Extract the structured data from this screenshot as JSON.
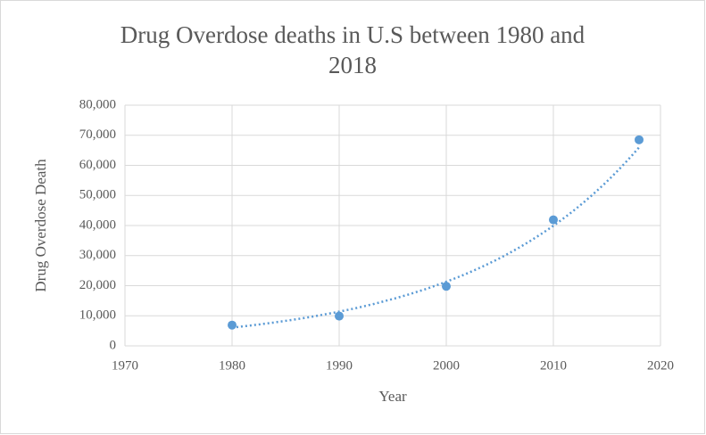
{
  "chart_data": {
    "type": "scatter",
    "title": "Drug Overdose deaths in U.S between 1980 and 2018",
    "x_label": "Year",
    "y_label": "Drug Overdose Death",
    "series": [
      {
        "x": [
          1980,
          1990,
          2000,
          2010,
          2018
        ],
        "values": [
          6900,
          9900,
          19800,
          41900,
          68500
        ],
        "color": "#5b9bd5"
      }
    ],
    "trendline": "exponential",
    "xlim": [
      1970,
      2020
    ],
    "xticks": [
      1970,
      1980,
      1990,
      2000,
      2010,
      2020
    ],
    "ylim": [
      0,
      80000
    ],
    "yticks": [
      0,
      {
        "value": 10000,
        "label": "10,000"
      },
      {
        "value": 20000,
        "label": "20,000"
      },
      {
        "value": 30000,
        "label": "30,000"
      },
      {
        "value": 40000,
        "label": "40,000"
      },
      {
        "value": 50000,
        "label": "50,000"
      },
      {
        "value": 60000,
        "label": "60,000"
      },
      {
        "value": 70000,
        "label": "70,000"
      },
      {
        "value": 80000,
        "label": "80,000"
      }
    ],
    "grid": true
  }
}
